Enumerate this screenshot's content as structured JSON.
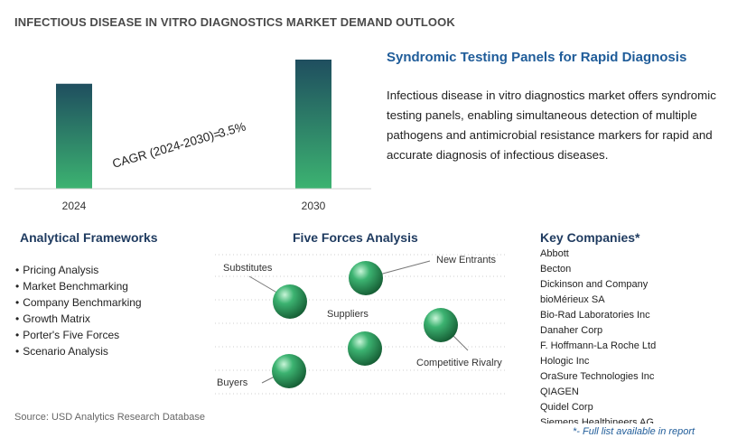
{
  "title": "INFECTIOUS DISEASE IN VITRO DIAGNOSTICS MARKET DEMAND OUTLOOK",
  "chart_data": {
    "type": "bar",
    "categories": [
      "2024",
      "2030"
    ],
    "values": [
      1.0,
      1.23
    ],
    "annotation": {
      "label": "CAGR (2024-2030)=",
      "value": "3.5%"
    },
    "axis_labels_shown": false,
    "grid": false,
    "bar_gradient": [
      "#1f4e5f",
      "#3cb371"
    ]
  },
  "headline": "Syndromic Testing Panels for Rapid Diagnosis",
  "description": "Infectious disease in vitro diagnostics market offers syndromic testing panels, enabling simultaneous detection of multiple pathogens and antimicrobial resistance markers for rapid and accurate diagnosis of infectious diseases.",
  "frameworks": {
    "title": "Analytical Frameworks",
    "items": [
      "Pricing Analysis",
      "Market Benchmarking",
      "Company Benchmarking",
      "Growth Matrix",
      "Porter's Five Forces",
      "Scenario Analysis"
    ]
  },
  "five_forces": {
    "title": "Five Forces Analysis",
    "labels": {
      "substitutes": "Substitutes",
      "new_entrants": "New Entrants",
      "suppliers": "Suppliers",
      "competitive_rivalry": "Competitive Rivalry",
      "buyers": "Buyers"
    },
    "sphere_color": "#3cb371"
  },
  "companies": {
    "title": "Key Companies*",
    "items": [
      "Abbott",
      "Becton",
      "Dickinson and Company",
      "bioMérieux SA",
      "Bio-Rad Laboratories Inc",
      "Danaher Corp",
      "F. Hoffmann-La Roche Ltd",
      "Hologic Inc",
      "OraSure Technologies Inc",
      "QIAGEN",
      "Quidel Corp",
      "Siemens Healthineers AG"
    ]
  },
  "source": "Source: USD Analytics Research Database",
  "footnote": "*- Full list available in report"
}
